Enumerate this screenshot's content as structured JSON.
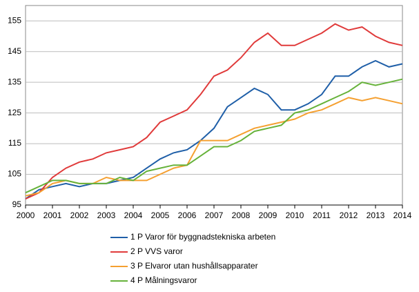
{
  "chart_data": {
    "type": "line",
    "x": [
      2000,
      2000.5,
      2001,
      2001.5,
      2002,
      2002.5,
      2003,
      2003.5,
      2004,
      2004.5,
      2005,
      2005.5,
      2006,
      2006.5,
      2007,
      2007.5,
      2008,
      2008.5,
      2009,
      2009.5,
      2010,
      2010.5,
      2011,
      2011.5,
      2012,
      2012.5,
      2013,
      2013.5,
      2014
    ],
    "series": [
      {
        "name": "1 P Varor för byggnadstekniska arbeten",
        "color": "#1f5fa8",
        "values": [
          97,
          100,
          101,
          102,
          101,
          102,
          102,
          103,
          104,
          107,
          110,
          112,
          113,
          116,
          120,
          127,
          130,
          133,
          131,
          126,
          126,
          128,
          131,
          137,
          137,
          140,
          142,
          140,
          141
        ]
      },
      {
        "name": "2 P VVS varor",
        "color": "#e03a3a",
        "values": [
          97,
          99,
          104,
          107,
          109,
          110,
          112,
          113,
          114,
          117,
          122,
          124,
          126,
          131,
          137,
          139,
          143,
          148,
          151,
          147,
          147,
          149,
          151,
          154,
          152,
          153,
          150,
          148,
          147
        ]
      },
      {
        "name": "3 P Elvaror utan hushållsapparater",
        "color": "#f5a030",
        "values": [
          98,
          99,
          102,
          103,
          102,
          102,
          104,
          103,
          103,
          103,
          105,
          107,
          108,
          116,
          116,
          116,
          118,
          120,
          121,
          122,
          123,
          125,
          126,
          128,
          130,
          129,
          130,
          129,
          128
        ]
      },
      {
        "name": "4 P Målningsvaror",
        "color": "#66b23a",
        "values": [
          99,
          101,
          103,
          103,
          102,
          102,
          102,
          104,
          103,
          106,
          107,
          108,
          108,
          111,
          114,
          114,
          116,
          119,
          120,
          121,
          125,
          126,
          128,
          130,
          132,
          135,
          134,
          135,
          136
        ]
      }
    ],
    "xlim": [
      2000,
      2014
    ],
    "xticks": [
      2000,
      2001,
      2002,
      2003,
      2004,
      2005,
      2006,
      2007,
      2008,
      2009,
      2010,
      2011,
      2012,
      2013,
      2014
    ],
    "ylim": [
      95,
      160
    ],
    "yticks": [
      95,
      105,
      115,
      125,
      135,
      145,
      155
    ],
    "grid": true
  }
}
